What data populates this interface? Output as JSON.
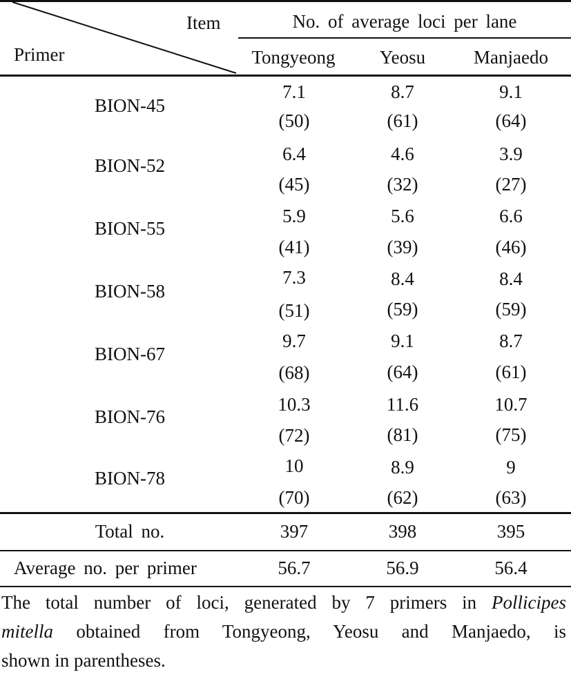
{
  "table": {
    "header": {
      "corner_top": "Item",
      "corner_bottom": "Primer",
      "group_title": "No. of average loci per lane",
      "columns": [
        "Tongyeong",
        "Yeosu",
        "Manjaedo"
      ]
    },
    "rows": [
      {
        "primer": "BION-45",
        "values": [
          "7.1",
          "8.7",
          "9.1"
        ],
        "totals": [
          "(50)",
          "(61)",
          "(64)"
        ]
      },
      {
        "primer": "BION-52",
        "values": [
          "6.4",
          "4.6",
          "3.9"
        ],
        "totals": [
          "(45)",
          "(32)",
          "(27)"
        ]
      },
      {
        "primer": "BION-55",
        "values": [
          "5.9",
          "5.6",
          "6.6"
        ],
        "totals": [
          "(41)",
          "(39)",
          "(46)"
        ]
      },
      {
        "primer": "BION-58",
        "values": [
          "7.3",
          "8.4",
          "8.4"
        ],
        "totals": [
          "(51)",
          "(59)",
          "(59)"
        ]
      },
      {
        "primer": "BION-67",
        "values": [
          "9.7",
          "9.1",
          "8.7"
        ],
        "totals": [
          "(68)",
          "(64)",
          "(61)"
        ]
      },
      {
        "primer": "BION-76",
        "values": [
          "10.3",
          "11.6",
          "10.7"
        ],
        "totals": [
          "(72)",
          "(81)",
          "(75)"
        ]
      },
      {
        "primer": "BION-78",
        "values": [
          "10",
          "8.9",
          "9"
        ],
        "totals": [
          "(70)",
          "(62)",
          "(63)"
        ]
      }
    ],
    "total_row": {
      "label": "Total no.",
      "values": [
        "397",
        "398",
        "395"
      ]
    },
    "average_row": {
      "label": "Average no. per primer",
      "values": [
        "56.7",
        "56.9",
        "56.4"
      ]
    }
  },
  "footnote": {
    "line1_a": "The total number of loci, generated by 7 primers in ",
    "line1_em": "Pollicipes",
    "line2_em": "mitella",
    "line2_b": " obtained from Tongyeong, Yeosu and Manjaedo, is",
    "line3": "shown in parentheses."
  }
}
